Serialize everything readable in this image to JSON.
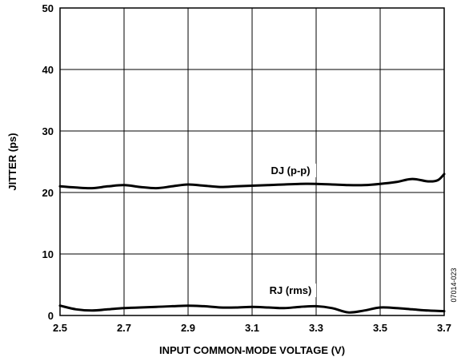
{
  "chart_data": {
    "type": "line",
    "xlabel": "INPUT COMMON-MODE VOLTAGE (V)",
    "ylabel": "JITTER (ps)",
    "xlim": [
      2.5,
      3.7
    ],
    "ylim": [
      0,
      50
    ],
    "xticks": [
      "2.5",
      "2.7",
      "2.9",
      "3.1",
      "3.3",
      "3.5",
      "3.7"
    ],
    "yticks": [
      "0",
      "10",
      "20",
      "30",
      "40",
      "50"
    ],
    "grid": true,
    "figure_id": "07014-023",
    "series": [
      {
        "name": "DJ (p-p)",
        "x": [
          2.5,
          2.55,
          2.6,
          2.65,
          2.7,
          2.75,
          2.8,
          2.85,
          2.9,
          2.95,
          3.0,
          3.05,
          3.1,
          3.15,
          3.2,
          3.25,
          3.3,
          3.35,
          3.4,
          3.45,
          3.5,
          3.55,
          3.6,
          3.65,
          3.68,
          3.7
        ],
        "values": [
          21.0,
          20.8,
          20.7,
          21.0,
          21.2,
          20.9,
          20.7,
          21.0,
          21.3,
          21.1,
          20.9,
          21.0,
          21.1,
          21.2,
          21.3,
          21.4,
          21.4,
          21.3,
          21.2,
          21.2,
          21.4,
          21.7,
          22.2,
          21.8,
          22.0,
          23.0
        ]
      },
      {
        "name": "RJ (rms)",
        "x": [
          2.5,
          2.55,
          2.6,
          2.65,
          2.7,
          2.75,
          2.8,
          2.85,
          2.9,
          2.95,
          3.0,
          3.05,
          3.1,
          3.15,
          3.2,
          3.25,
          3.3,
          3.35,
          3.4,
          3.45,
          3.5,
          3.55,
          3.6,
          3.65,
          3.7
        ],
        "values": [
          1.6,
          1.0,
          0.8,
          1.0,
          1.2,
          1.3,
          1.4,
          1.5,
          1.6,
          1.5,
          1.3,
          1.3,
          1.4,
          1.3,
          1.2,
          1.4,
          1.5,
          1.2,
          0.5,
          0.8,
          1.3,
          1.2,
          1.0,
          0.8,
          0.7
        ]
      }
    ],
    "labels": [
      {
        "text": "DJ (p-p)",
        "x": 3.22,
        "y": 23.0
      },
      {
        "text": "RJ (rms)",
        "x": 3.22,
        "y": 3.5
      }
    ]
  }
}
